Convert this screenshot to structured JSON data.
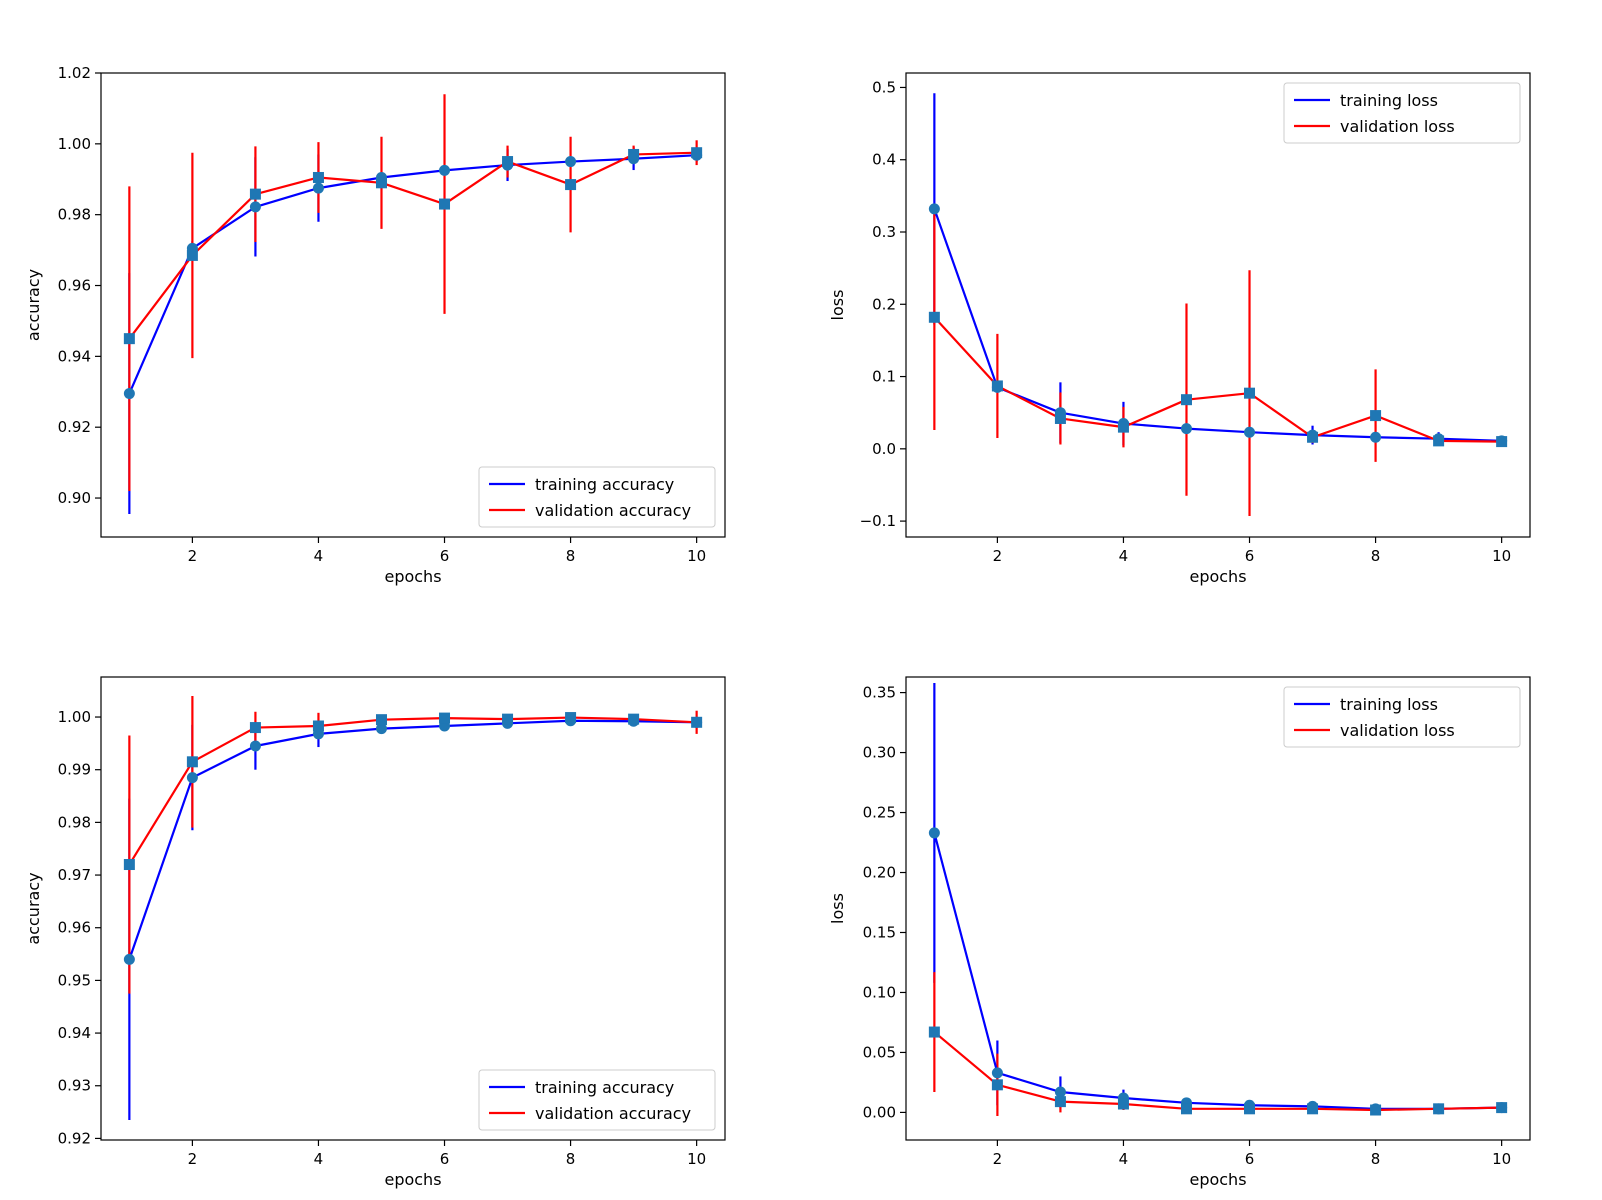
{
  "chart_data": [
    {
      "type": "line",
      "position": "top-left",
      "title": "",
      "xlabel": "epochs",
      "ylabel": "accuracy",
      "xlim": [
        0.55,
        10.45
      ],
      "ylim": [
        0.889,
        1.02
      ],
      "xticks": [
        2,
        4,
        6,
        8,
        10
      ],
      "yticks": [
        0.9,
        0.92,
        0.94,
        0.96,
        0.98,
        1.0,
        1.02
      ],
      "tick_decimals": 2,
      "grid": false,
      "legend_position": "lower-right",
      "x": [
        1,
        2,
        3,
        4,
        5,
        6,
        7,
        8,
        9,
        10
      ],
      "series": [
        {
          "name": "training accuracy",
          "color": "#0000ff",
          "marker": "circle",
          "values": [
            0.9295,
            0.9705,
            0.9822,
            0.9875,
            0.9905,
            0.9925,
            0.994,
            0.995,
            0.9958,
            0.9968
          ],
          "errors": [
            0.034,
            0.002,
            0.014,
            0.0095,
            0.0012,
            0.0007,
            0.0045,
            0.0007,
            0.0032,
            0.0018
          ]
        },
        {
          "name": "validation accuracy",
          "color": "#ff0000",
          "marker": "square",
          "values": [
            0.945,
            0.9685,
            0.9858,
            0.9905,
            0.989,
            0.983,
            0.995,
            0.9885,
            0.997,
            0.9975
          ],
          "errors": [
            0.043,
            0.029,
            0.0135,
            0.01,
            0.013,
            0.031,
            0.0045,
            0.0135,
            0.0025,
            0.0035
          ]
        }
      ]
    },
    {
      "type": "line",
      "position": "top-right",
      "title": "",
      "xlabel": "epochs",
      "ylabel": "loss",
      "xlim": [
        0.55,
        10.45
      ],
      "ylim": [
        -0.122,
        0.52
      ],
      "xticks": [
        2,
        4,
        6,
        8,
        10
      ],
      "yticks": [
        -0.1,
        0.0,
        0.1,
        0.2,
        0.3,
        0.4,
        0.5
      ],
      "tick_decimals": 1,
      "grid": false,
      "legend_position": "upper-right",
      "x": [
        1,
        2,
        3,
        4,
        5,
        6,
        7,
        8,
        9,
        10
      ],
      "series": [
        {
          "name": "training loss",
          "color": "#0000ff",
          "marker": "circle",
          "values": [
            0.332,
            0.085,
            0.05,
            0.035,
            0.028,
            0.023,
            0.019,
            0.016,
            0.014,
            0.011
          ],
          "errors": [
            0.16,
            0.005,
            0.042,
            0.03,
            0.005,
            0.003,
            0.013,
            0.002,
            0.009,
            0.004
          ]
        },
        {
          "name": "validation loss",
          "color": "#ff0000",
          "marker": "square",
          "values": [
            0.182,
            0.087,
            0.042,
            0.03,
            0.068,
            0.077,
            0.016,
            0.046,
            0.011,
            0.01
          ],
          "errors": [
            0.156,
            0.072,
            0.036,
            0.028,
            0.133,
            0.17,
            0.008,
            0.064,
            0.006,
            0.003
          ]
        }
      ]
    },
    {
      "type": "line",
      "position": "bottom-left",
      "title": "",
      "xlabel": "epochs",
      "ylabel": "accuracy",
      "xlim": [
        0.55,
        10.45
      ],
      "ylim": [
        0.9197,
        1.0076
      ],
      "xticks": [
        2,
        4,
        6,
        8,
        10
      ],
      "yticks": [
        0.92,
        0.93,
        0.94,
        0.95,
        0.96,
        0.97,
        0.98,
        0.99,
        1.0
      ],
      "tick_decimals": 2,
      "grid": false,
      "legend_position": "lower-right",
      "x": [
        1,
        2,
        3,
        4,
        5,
        6,
        7,
        8,
        9,
        10
      ],
      "series": [
        {
          "name": "training accuracy",
          "color": "#0000ff",
          "marker": "circle",
          "values": [
            0.954,
            0.9885,
            0.9945,
            0.9968,
            0.9978,
            0.9983,
            0.9988,
            0.9993,
            0.9992,
            0.999
          ],
          "errors": [
            0.0305,
            0.01,
            0.0045,
            0.0025,
            0.0008,
            0.0006,
            0.0008,
            0.0005,
            0.0006,
            0.0006
          ]
        },
        {
          "name": "validation accuracy",
          "color": "#ff0000",
          "marker": "square",
          "values": [
            0.972,
            0.9915,
            0.998,
            0.9983,
            0.9995,
            0.9998,
            0.9996,
            0.9999,
            0.9996,
            0.999
          ],
          "errors": [
            0.0245,
            0.0125,
            0.003,
            0.0025,
            0.0006,
            0.0004,
            0.0005,
            0.0004,
            0.0005,
            0.0022
          ]
        }
      ]
    },
    {
      "type": "line",
      "position": "bottom-right",
      "title": "",
      "xlabel": "epochs",
      "ylabel": "loss",
      "xlim": [
        0.55,
        10.45
      ],
      "ylim": [
        -0.023,
        0.363
      ],
      "xticks": [
        2,
        4,
        6,
        8,
        10
      ],
      "yticks": [
        0.0,
        0.05,
        0.1,
        0.15,
        0.2,
        0.25,
        0.3,
        0.35
      ],
      "tick_decimals": 2,
      "grid": false,
      "legend_position": "upper-right",
      "x": [
        1,
        2,
        3,
        4,
        5,
        6,
        7,
        8,
        9,
        10
      ],
      "series": [
        {
          "name": "training loss",
          "color": "#0000ff",
          "marker": "circle",
          "values": [
            0.233,
            0.033,
            0.017,
            0.012,
            0.008,
            0.006,
            0.005,
            0.003,
            0.003,
            0.004
          ],
          "errors": [
            0.125,
            0.027,
            0.013,
            0.007,
            0.002,
            0.002,
            0.002,
            0.001,
            0.002,
            0.003
          ]
        },
        {
          "name": "validation loss",
          "color": "#ff0000",
          "marker": "square",
          "values": [
            0.067,
            0.023,
            0.009,
            0.007,
            0.003,
            0.003,
            0.003,
            0.002,
            0.003,
            0.004
          ],
          "errors": [
            0.05,
            0.026,
            0.009,
            0.005,
            0.002,
            0.001,
            0.001,
            0.001,
            0.001,
            0.002
          ]
        }
      ]
    }
  ],
  "style": {
    "marker_color": "#1f77b4",
    "axis_color": "#000000"
  }
}
